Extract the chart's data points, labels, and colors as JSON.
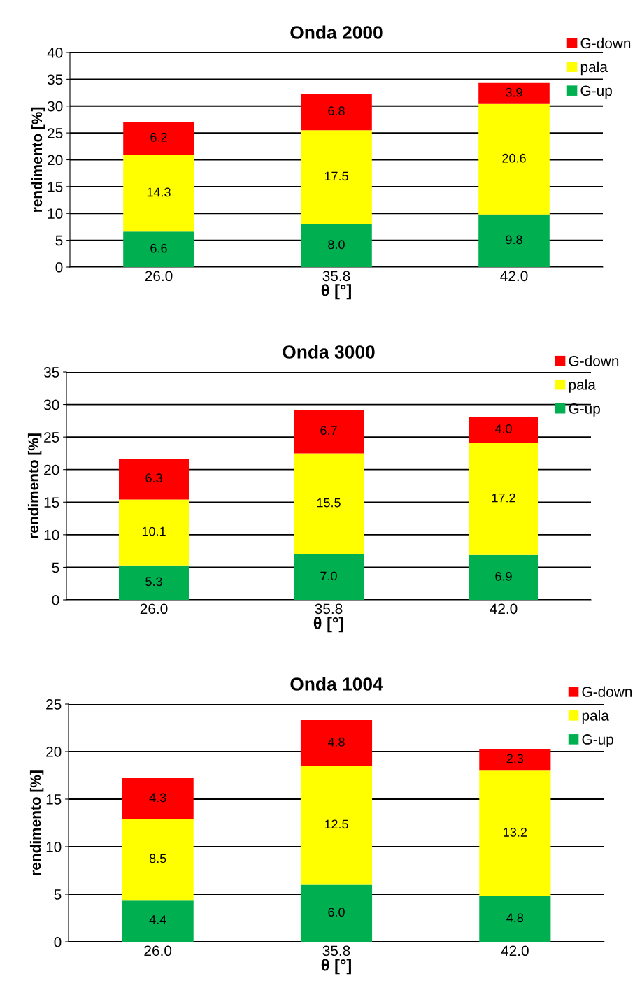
{
  "chart_data": [
    {
      "type": "bar",
      "title": "Onda 2000",
      "xlabel": "θ [°]",
      "ylabel": "rendimento [%]",
      "categories": [
        "26.0",
        "35.8",
        "42.0"
      ],
      "stacked": true,
      "ylim": [
        0,
        40
      ],
      "yticks": [
        0,
        5,
        10,
        15,
        20,
        25,
        30,
        35,
        40
      ],
      "grid": "y",
      "legend": "top right",
      "series": [
        {
          "name": "G-up",
          "color": "#00b050",
          "values": [
            6.6,
            8.0,
            9.8
          ],
          "value_labels": [
            "6.6",
            "8.0",
            "9.8"
          ]
        },
        {
          "name": "pala",
          "color": "#ffff00",
          "values": [
            14.3,
            17.5,
            20.6
          ],
          "value_labels": [
            "14.3",
            "17.5",
            "20.6"
          ]
        },
        {
          "name": "G-down",
          "color": "#ff0000",
          "values": [
            6.2,
            6.8,
            3.9
          ],
          "value_labels": [
            "6.2",
            "6.8",
            "3.9"
          ]
        }
      ]
    },
    {
      "type": "bar",
      "title": "Onda 3000",
      "xlabel": "θ [°]",
      "ylabel": "rendimento [%]",
      "categories": [
        "26.0",
        "35.8",
        "42.0"
      ],
      "stacked": true,
      "ylim": [
        0,
        35
      ],
      "yticks": [
        0,
        5,
        10,
        15,
        20,
        25,
        30,
        35
      ],
      "grid": "y",
      "legend": "top right",
      "series": [
        {
          "name": "G-up",
          "color": "#00b050",
          "values": [
            5.3,
            7.0,
            6.9
          ],
          "value_labels": [
            "5.3",
            "7.0",
            "6.9"
          ]
        },
        {
          "name": "pala",
          "color": "#ffff00",
          "values": [
            10.1,
            15.5,
            17.2
          ],
          "value_labels": [
            "10.1",
            "15.5",
            "17.2"
          ]
        },
        {
          "name": "G-down",
          "color": "#ff0000",
          "values": [
            6.3,
            6.7,
            4.0
          ],
          "value_labels": [
            "6.3",
            "6.7",
            "4.0"
          ]
        }
      ]
    },
    {
      "type": "bar",
      "title": "Onda 1004",
      "xlabel": "θ [°]",
      "ylabel": "rendimento [%]",
      "categories": [
        "26.0",
        "35.8",
        "42.0"
      ],
      "stacked": true,
      "ylim": [
        0,
        25
      ],
      "yticks": [
        0,
        5,
        10,
        15,
        20,
        25
      ],
      "grid": "y",
      "legend": "top right",
      "series": [
        {
          "name": "G-up",
          "color": "#00b050",
          "values": [
            4.4,
            6.0,
            4.8
          ],
          "value_labels": [
            "4.4",
            "6.0",
            "4.8"
          ]
        },
        {
          "name": "pala",
          "color": "#ffff00",
          "values": [
            8.5,
            12.5,
            13.2
          ],
          "value_labels": [
            "8.5",
            "12.5",
            "13.2"
          ]
        },
        {
          "name": "G-down",
          "color": "#ff0000",
          "values": [
            4.3,
            4.8,
            2.3
          ],
          "value_labels": [
            "4.3",
            "4.8",
            "2.3"
          ]
        }
      ]
    }
  ]
}
